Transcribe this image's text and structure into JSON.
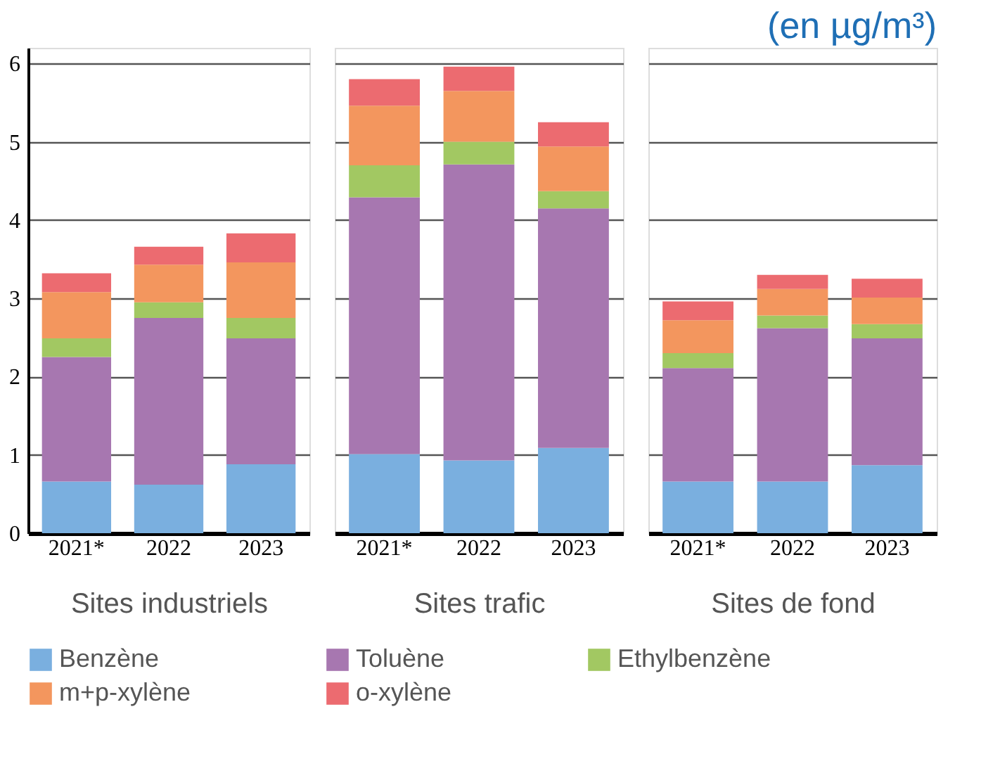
{
  "chart_data": [
    {
      "type": "bar",
      "xlabel": "Sites industriels",
      "categories": [
        "2021*",
        "2022",
        "2023"
      ],
      "stacked": true,
      "ylim": [
        0,
        6.2
      ],
      "yticks": [
        0,
        1,
        2,
        3,
        4,
        5,
        6
      ],
      "grid": "y",
      "legend": "bottom",
      "series": [
        {
          "name": "Benzène",
          "color": "#7aafdf",
          "values": [
            0.66,
            0.62,
            0.88
          ]
        },
        {
          "name": "Toluène",
          "color": "#a777b0",
          "values": [
            1.59,
            2.13,
            1.61
          ]
        },
        {
          "name": "Ethylbenzène",
          "color": "#a2c862",
          "values": [
            0.24,
            0.2,
            0.26
          ]
        },
        {
          "name": "m+p-xylène",
          "color": "#f3965e",
          "values": [
            0.59,
            0.48,
            0.71
          ]
        },
        {
          "name": "o-xylène",
          "color": "#ec6b70",
          "values": [
            0.24,
            0.23,
            0.37
          ]
        }
      ]
    },
    {
      "type": "bar",
      "xlabel": "Sites trafic",
      "categories": [
        "2021*",
        "2022",
        "2023"
      ],
      "stacked": true,
      "ylim": [
        0,
        6.2
      ],
      "yticks": [
        0,
        1,
        2,
        3,
        4,
        5,
        6
      ],
      "grid": "y",
      "tick_labels": "x",
      "series": [
        {
          "name": "Benzène",
          "color": "#7aafdf",
          "values": [
            1.01,
            0.93,
            1.09
          ]
        },
        {
          "name": "Toluène",
          "color": "#a777b0",
          "values": [
            3.28,
            3.78,
            3.06
          ]
        },
        {
          "name": "Ethylbenzène",
          "color": "#a2c862",
          "values": [
            0.41,
            0.29,
            0.22
          ]
        },
        {
          "name": "m+p-xylène",
          "color": "#f3965e",
          "values": [
            0.76,
            0.65,
            0.57
          ]
        },
        {
          "name": "o-xylène",
          "color": "#ec6b70",
          "values": [
            0.34,
            0.31,
            0.31
          ]
        }
      ]
    },
    {
      "type": "bar",
      "title": "(en µg/m³)",
      "xlabel": "Sites de fond",
      "categories": [
        "2021*",
        "2022",
        "2023"
      ],
      "stacked": true,
      "ylim": [
        0,
        6.2
      ],
      "yticks": [
        0,
        1,
        2,
        3,
        4,
        5,
        6
      ],
      "grid": "y",
      "tick_labels": "x",
      "series": [
        {
          "name": "Benzène",
          "color": "#7aafdf",
          "values": [
            0.66,
            0.66,
            0.87
          ]
        },
        {
          "name": "Toluène",
          "color": "#a777b0",
          "values": [
            1.45,
            1.96,
            1.62
          ]
        },
        {
          "name": "Ethylbenzène",
          "color": "#a2c862",
          "values": [
            0.19,
            0.16,
            0.18
          ]
        },
        {
          "name": "m+p-xylène",
          "color": "#f3965e",
          "values": [
            0.42,
            0.34,
            0.34
          ]
        },
        {
          "name": "o-xylène",
          "color": "#ec6b70",
          "values": [
            0.24,
            0.18,
            0.24
          ]
        }
      ]
    }
  ]
}
